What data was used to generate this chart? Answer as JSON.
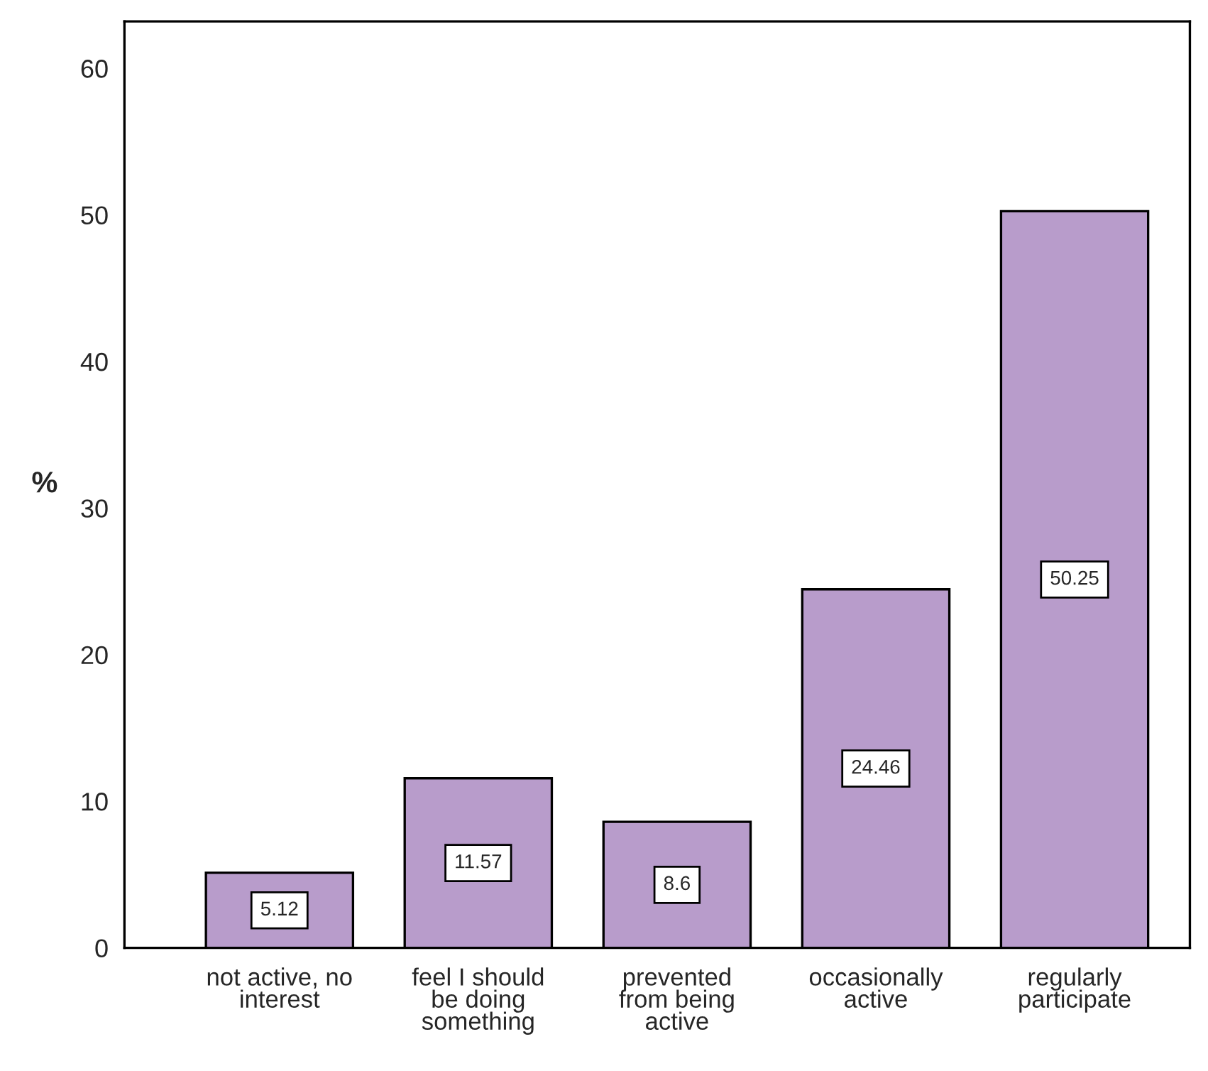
{
  "chart_data": {
    "type": "bar",
    "ylabel": "%",
    "categories": [
      "not active, no\ninterest",
      "feel I should\nbe doing\nsomething",
      "prevented\nfrom being\nactive",
      "occasionally\nactive",
      "regularly\nparticipate"
    ],
    "values": [
      5.12,
      11.57,
      8.6,
      24.46,
      50.25
    ],
    "color": "#b89ccb",
    "ylim": [
      0,
      63.2
    ],
    "yticks": [
      0,
      10,
      20,
      30,
      40,
      50,
      60
    ],
    "data_labels": true,
    "grid": false
  }
}
